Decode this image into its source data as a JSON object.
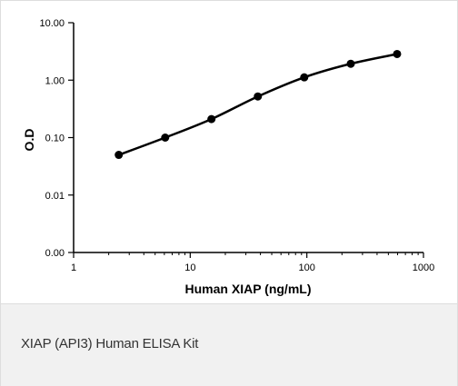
{
  "caption": "XIAP (API3) Human ELISA Kit",
  "chart_data": {
    "type": "line",
    "x_scale": "log",
    "y_scale": "log",
    "xlabel": "Human XIAP (ng/mL)",
    "ylabel": "O.D",
    "xlim": [
      1,
      1000
    ],
    "ylim": [
      0.001,
      10
    ],
    "x_ticks": [
      {
        "value": 1,
        "label": "1"
      },
      {
        "value": 10,
        "label": "10"
      },
      {
        "value": 100,
        "label": "100"
      },
      {
        "value": 1000,
        "label": "1000"
      }
    ],
    "y_ticks": [
      {
        "value": 0.001,
        "label": "0.00"
      },
      {
        "value": 0.01,
        "label": "0.01"
      },
      {
        "value": 0.1,
        "label": "0.10"
      },
      {
        "value": 1,
        "label": "1.00"
      },
      {
        "value": 10,
        "label": "10.00"
      }
    ],
    "x": [
      2.44,
      6.1,
      15.2,
      38,
      95,
      238,
      594
    ],
    "y": [
      0.05,
      0.1,
      0.21,
      0.52,
      1.12,
      1.93,
      2.85
    ],
    "grid": false,
    "legend": "none",
    "colors": {
      "line": "#000000",
      "marker": "#000000",
      "axis": "#000000"
    }
  }
}
